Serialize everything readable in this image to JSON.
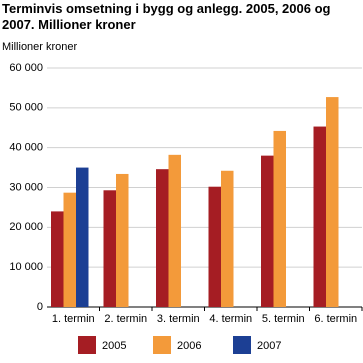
{
  "chart_data": {
    "type": "bar",
    "title": "Terminvis omsetning i bygg og anlegg. 2005, 2006 og 2007. Millioner kroner",
    "y_label": "Millioner kroner",
    "categories": [
      "1. termin",
      "2. termin",
      "3. termin",
      "4. termin",
      "5. termin",
      "6. termin"
    ],
    "series": [
      {
        "name": "2005",
        "color": "#a51d23",
        "values": [
          24000,
          29300,
          34600,
          30200,
          38000,
          45300
        ]
      },
      {
        "name": "2006",
        "color": "#f39a3a",
        "values": [
          28700,
          33400,
          38200,
          34200,
          44200,
          52700
        ]
      },
      {
        "name": "2007",
        "color": "#1c3f94",
        "values": [
          35000,
          null,
          null,
          null,
          null,
          null
        ]
      }
    ],
    "ylim": [
      0,
      60000
    ],
    "yticks": [
      0,
      {
        "value": 10000,
        "label": "10 000"
      },
      {
        "value": 20000,
        "label": "20 000"
      },
      {
        "value": 30000,
        "label": "30 000"
      },
      {
        "value": 40000,
        "label": "40 000"
      },
      {
        "value": 50000,
        "label": "50 000"
      },
      {
        "value": 60000,
        "label": "60 000"
      }
    ],
    "grid": true
  }
}
